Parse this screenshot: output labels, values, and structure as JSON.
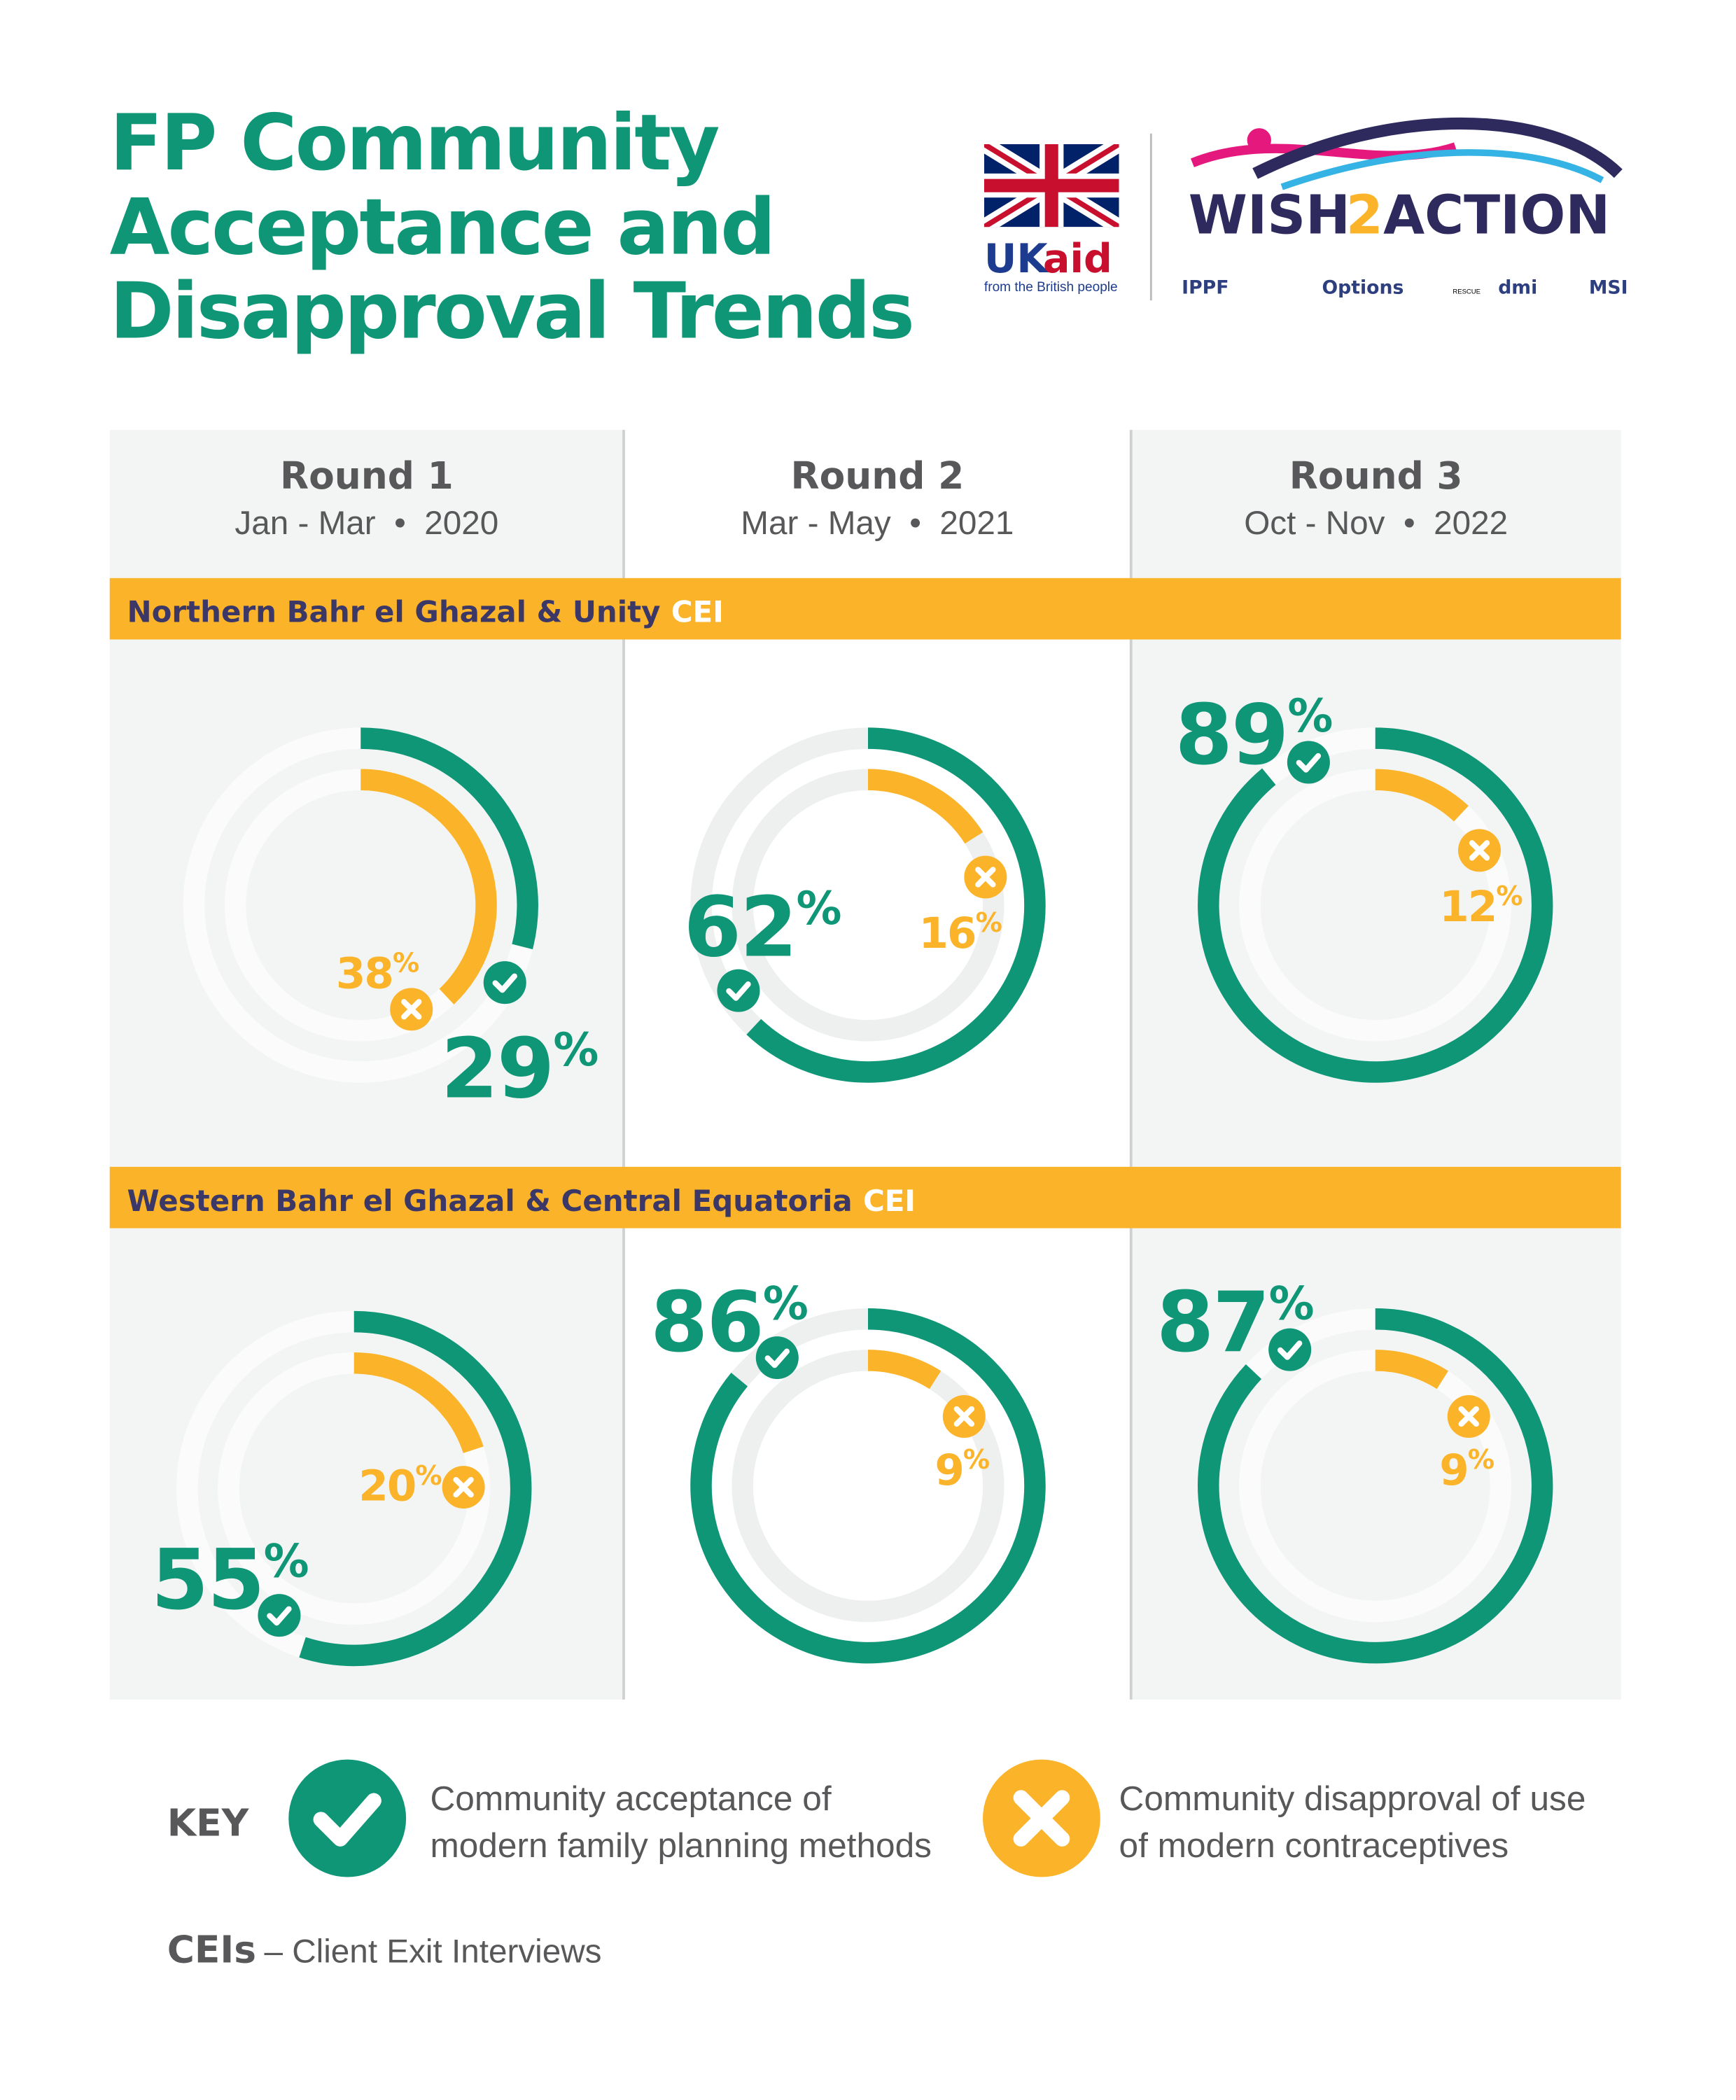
{
  "title": [
    "FP Community",
    "Acceptance and",
    "Disapproval Trends"
  ],
  "logos": {
    "ukaid": {
      "uk": "UK",
      "aid": "aid",
      "tagline": "from the British people"
    },
    "wish2action": {
      "wish": "WISH",
      "two": "2",
      "action": "ACTION"
    },
    "partners": [
      "IPPF",
      "Options",
      "RESCUE",
      "dmi",
      "MSI"
    ]
  },
  "unit": "%",
  "colors": {
    "acceptance": "#0e9676",
    "disapproval": "#fbb42a"
  },
  "columns": [
    {
      "round": "Round 1",
      "dates": "Jan - Mar  •  2020"
    },
    {
      "round": "Round 2",
      "dates": "Mar - May  •  2021"
    },
    {
      "round": "Round 3",
      "dates": "Oct - Nov  •  2022"
    }
  ],
  "regions": [
    {
      "name": "Northern Bahr el Ghazal & Unity",
      "tag": "CEI",
      "acceptance": [
        29,
        62,
        89
      ],
      "disapproval": [
        38,
        16,
        12
      ]
    },
    {
      "name": "Western Bahr el Ghazal & Central Equatoria",
      "tag": "CEI",
      "acceptance": [
        55,
        86,
        87
      ],
      "disapproval": [
        20,
        9,
        9
      ]
    }
  ],
  "key": {
    "title": "KEY",
    "acceptance": [
      "Community acceptance of",
      "modern family planning methods"
    ],
    "disapproval": [
      "Community disapproval of use",
      "of modern contraceptives"
    ]
  },
  "footnote": {
    "term": "CEIs",
    "text": "– Client Exit Interviews"
  }
}
